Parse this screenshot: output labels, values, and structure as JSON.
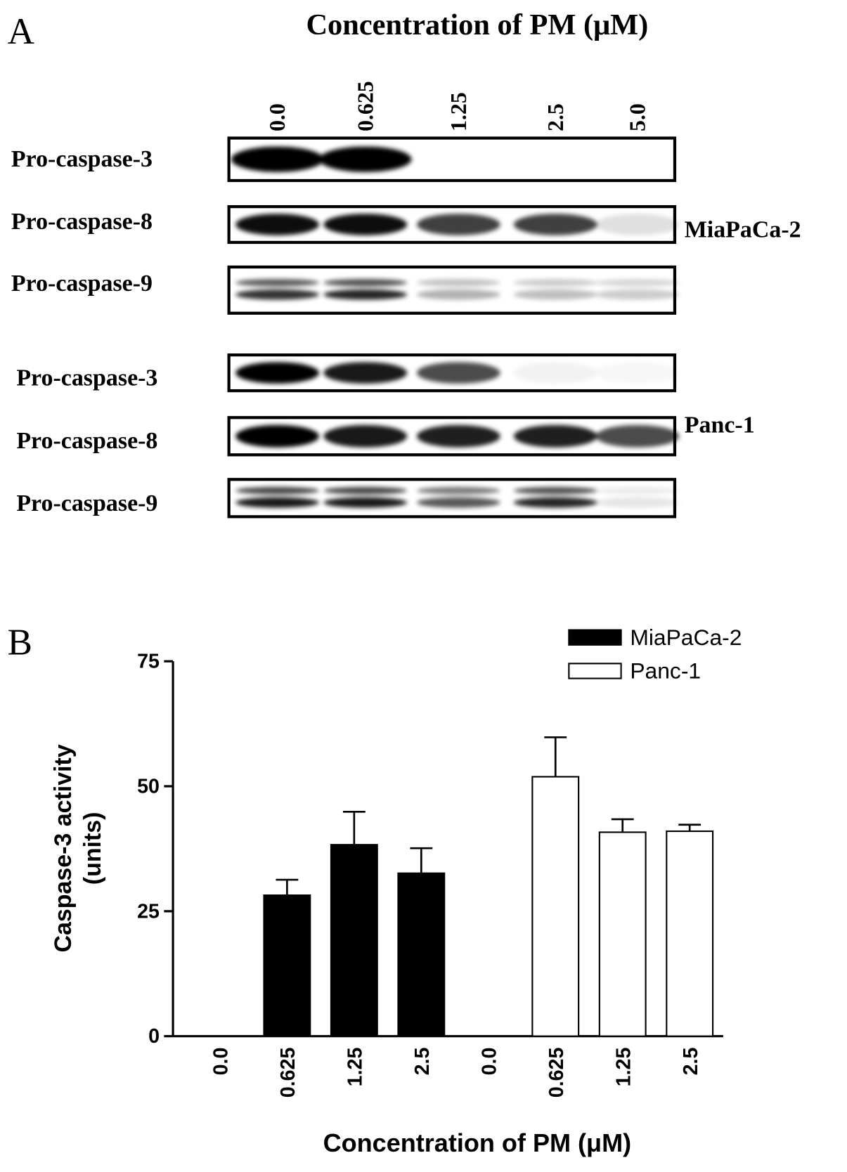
{
  "panel_a": {
    "label": "A",
    "title": "Concentration of PM (μM)",
    "lanes": [
      "0.0",
      "0.625",
      "1.25",
      "2.5",
      "5.0"
    ],
    "groups": [
      {
        "cell_line": "MiaPaCa-2",
        "rows": [
          "Pro-caspase-3",
          "Pro-caspase-8",
          "Pro-caspase-9"
        ]
      },
      {
        "cell_line": "Panc-1",
        "rows": [
          "Pro-caspase-3",
          "Pro-caspase-8",
          "Pro-caspase-9"
        ]
      }
    ]
  },
  "chart_data": {
    "type": "bar",
    "panel_label": "B",
    "categories": [
      "0.0",
      "0.625",
      "1.25",
      "2.5",
      "0.0",
      "0.625",
      "1.25",
      "2.5"
    ],
    "series": [
      {
        "name": "MiaPaCa-2",
        "color": "#000000",
        "values": [
          0,
          28.2,
          38.3,
          32.6,
          null,
          null,
          null,
          null
        ],
        "errors": [
          null,
          3.1,
          6.6,
          5.0,
          null,
          null,
          null,
          null
        ]
      },
      {
        "name": "Panc-1",
        "color": "#ffffff",
        "values": [
          null,
          null,
          null,
          null,
          0,
          51.9,
          40.8,
          41.0
        ],
        "errors": [
          null,
          null,
          null,
          null,
          null,
          7.9,
          2.6,
          1.3
        ]
      }
    ],
    "ylim": [
      0,
      75
    ],
    "yticks": [
      0,
      25,
      50,
      75
    ],
    "ylabel": [
      "Caspase-3 activity",
      "(units)"
    ],
    "xlabel": "Concentration of PM (μM)"
  }
}
